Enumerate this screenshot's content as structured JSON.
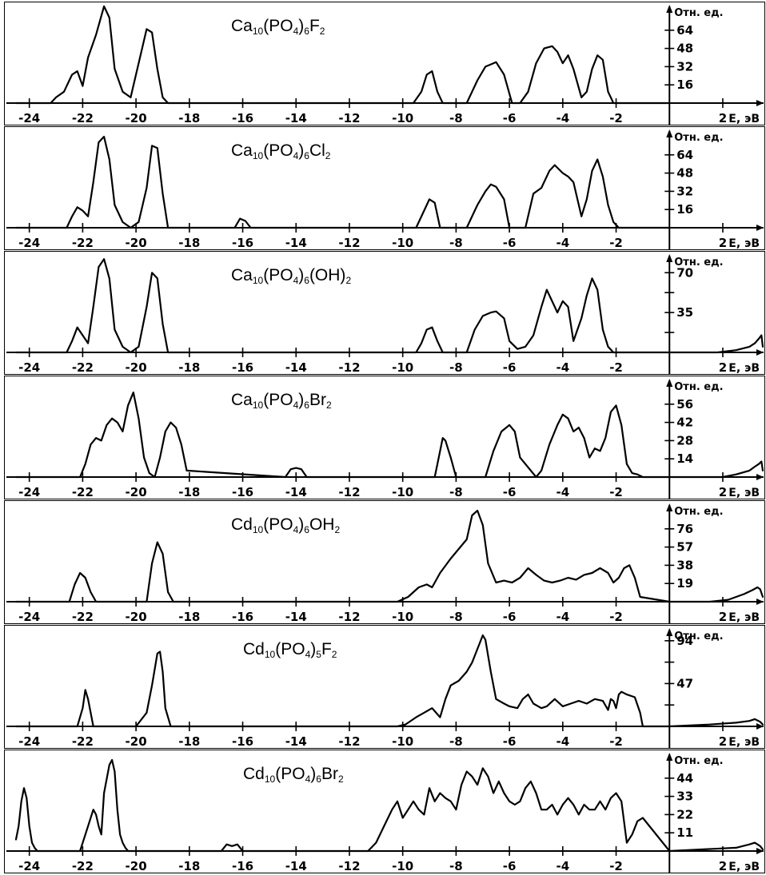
{
  "x_axis": {
    "xlim": [
      -24.5,
      3.5
    ],
    "tick_values": [
      -24,
      -22,
      -20,
      -18,
      -16,
      -14,
      -12,
      -10,
      -8,
      -6,
      -4,
      -2,
      2
    ],
    "tick_labels": [
      "-24",
      "-22",
      "-20",
      "-18",
      "-16",
      "-14",
      "-12",
      "-10",
      "-8",
      "-6",
      "-4",
      "-2",
      "2"
    ],
    "unit_label": "E, эВ"
  },
  "y_unit_label": "Отн. ед.",
  "line_color": "#000000",
  "chart_data": [
    {
      "type": "line",
      "formula": [
        [
          "Ca",
          "10"
        ],
        [
          "(PO",
          "4"
        ],
        [
          ")",
          "6"
        ],
        [
          "F",
          "2"
        ]
      ],
      "ylim": [
        0,
        80
      ],
      "y_ticks": [
        16,
        32,
        48,
        64
      ],
      "y_tick_labels": [
        "16",
        "32",
        "48",
        "64"
      ],
      "x": [
        -24.5,
        -23.2,
        -23.0,
        -22.7,
        -22.4,
        -22.2,
        -22.0,
        -21.8,
        -21.5,
        -21.2,
        -21.0,
        -20.8,
        -20.5,
        -20.2,
        -19.9,
        -19.6,
        -19.4,
        -19.2,
        -19.0,
        -18.8,
        -18.5,
        -9.6,
        -9.3,
        -9.1,
        -8.9,
        -8.7,
        -8.5,
        -7.6,
        -7.2,
        -6.9,
        -6.7,
        -6.5,
        -6.2,
        -5.9,
        -5.6,
        -5.3,
        -5.0,
        -4.7,
        -4.4,
        -4.2,
        -4.0,
        -3.8,
        -3.6,
        -3.3,
        -3.1,
        -2.9,
        -2.7,
        -2.5,
        -2.3,
        -2.1,
        -1.9,
        0
      ],
      "y": [
        0,
        0,
        5,
        10,
        25,
        28,
        15,
        40,
        60,
        85,
        75,
        30,
        10,
        5,
        35,
        65,
        62,
        30,
        5,
        0,
        0,
        0,
        10,
        25,
        28,
        10,
        0,
        0,
        20,
        32,
        34,
        36,
        25,
        0,
        0,
        10,
        35,
        48,
        50,
        45,
        35,
        42,
        30,
        5,
        10,
        30,
        42,
        38,
        10,
        0,
        0,
        0
      ]
    },
    {
      "type": "line",
      "formula": [
        [
          "Ca",
          "10"
        ],
        [
          "(PO",
          "4"
        ],
        [
          ")",
          "6"
        ],
        [
          "Cl",
          "2"
        ]
      ],
      "ylim": [
        0,
        80
      ],
      "y_ticks": [
        16,
        32,
        48,
        64
      ],
      "y_tick_labels": [
        "16",
        "32",
        "48",
        "64"
      ],
      "x": [
        -24.5,
        -22.6,
        -22.4,
        -22.2,
        -22.0,
        -21.8,
        -21.6,
        -21.4,
        -21.2,
        -21.0,
        -20.8,
        -20.5,
        -20.2,
        -19.9,
        -19.6,
        -19.4,
        -19.2,
        -19.0,
        -18.8,
        -16.3,
        -16.1,
        -15.9,
        -15.7,
        -9.5,
        -9.2,
        -9.0,
        -8.8,
        -8.6,
        -7.6,
        -7.2,
        -6.9,
        -6.7,
        -6.5,
        -6.2,
        -6.0,
        -5.4,
        -5.1,
        -4.8,
        -4.5,
        -4.3,
        -4.0,
        -3.8,
        -3.6,
        -3.3,
        -3.1,
        -2.9,
        -2.7,
        -2.5,
        -2.3,
        -2.1,
        -1.9,
        0
      ],
      "y": [
        0,
        0,
        10,
        18,
        15,
        10,
        40,
        75,
        80,
        60,
        20,
        5,
        0,
        5,
        35,
        72,
        70,
        30,
        0,
        0,
        8,
        6,
        0,
        0,
        15,
        25,
        22,
        0,
        0,
        20,
        32,
        38,
        36,
        25,
        0,
        0,
        30,
        35,
        50,
        55,
        48,
        45,
        40,
        10,
        25,
        50,
        60,
        45,
        20,
        5,
        0,
        0
      ]
    },
    {
      "type": "line",
      "formula": [
        [
          "Ca",
          "10"
        ],
        [
          "(PO",
          "4"
        ],
        [
          ")",
          "6"
        ],
        [
          "(OH)",
          "2"
        ]
      ],
      "ylim": [
        0,
        80
      ],
      "y_ticks": [
        17.5,
        35,
        52.5,
        70
      ],
      "y_tick_labels": [
        "",
        "35",
        "",
        "70"
      ],
      "x": [
        -24.5,
        -22.6,
        -22.4,
        -22.2,
        -22.0,
        -21.8,
        -21.6,
        -21.4,
        -21.2,
        -21.0,
        -20.8,
        -20.5,
        -20.2,
        -19.9,
        -19.6,
        -19.4,
        -19.2,
        -19.0,
        -18.8,
        -9.5,
        -9.3,
        -9.1,
        -8.9,
        -8.7,
        -8.5,
        -7.6,
        -7.3,
        -7.0,
        -6.7,
        -6.5,
        -6.2,
        -6.0,
        -5.7,
        -5.4,
        -5.1,
        -4.8,
        -4.6,
        -4.4,
        -4.2,
        -4.0,
        -3.8,
        -3.6,
        -3.3,
        -3.1,
        -2.9,
        -2.7,
        -2.5,
        -2.3,
        -2.1,
        -1.9,
        1.8,
        2.5,
        3.0,
        3.2,
        3.35,
        3.45,
        3.5
      ],
      "y": [
        0,
        0,
        10,
        22,
        15,
        8,
        40,
        75,
        82,
        65,
        20,
        5,
        0,
        5,
        40,
        70,
        65,
        25,
        0,
        0,
        8,
        20,
        22,
        10,
        0,
        0,
        20,
        32,
        35,
        36,
        30,
        10,
        3,
        5,
        15,
        40,
        55,
        45,
        35,
        45,
        40,
        10,
        30,
        50,
        65,
        55,
        20,
        5,
        0,
        0,
        0,
        2,
        5,
        8,
        12,
        15,
        5
      ]
    },
    {
      "type": "line",
      "formula": [
        [
          "Ca",
          "10"
        ],
        [
          "(PO",
          "4"
        ],
        [
          ")",
          "6"
        ],
        [
          "Br",
          "2"
        ]
      ],
      "ylim": [
        0,
        70
      ],
      "y_ticks": [
        14,
        28,
        42,
        56
      ],
      "y_tick_labels": [
        "14",
        "28",
        "42",
        "56"
      ],
      "x": [
        -24.5,
        -22.1,
        -21.9,
        -21.7,
        -21.5,
        -21.3,
        -21.1,
        -20.9,
        -20.7,
        -20.5,
        -20.3,
        -20.1,
        -19.9,
        -19.7,
        -19.5,
        -19.3,
        -19.1,
        -18.9,
        -18.7,
        -18.5,
        -18.3,
        -18.1,
        -14.4,
        -14.2,
        -14.0,
        -13.8,
        -13.6,
        -8.8,
        -8.6,
        -8.5,
        -8.4,
        -8.2,
        -8.0,
        -6.9,
        -6.6,
        -6.3,
        -6.0,
        -5.8,
        -5.6,
        -5.0,
        -4.8,
        -4.5,
        -4.2,
        -4.0,
        -3.8,
        -3.6,
        -3.4,
        -3.2,
        -3.0,
        -2.8,
        -2.6,
        -2.4,
        -2.2,
        -2.0,
        -1.8,
        -1.6,
        -1.4,
        -1.2,
        -1.0,
        0,
        2.0,
        2.5,
        3.0,
        3.2,
        3.35,
        3.45,
        3.5
      ],
      "y": [
        0,
        0,
        10,
        25,
        30,
        28,
        40,
        45,
        42,
        35,
        55,
        65,
        45,
        15,
        3,
        0,
        15,
        35,
        42,
        38,
        25,
        5,
        0,
        6,
        7,
        6,
        0,
        0,
        20,
        30,
        28,
        15,
        0,
        0,
        20,
        35,
        40,
        35,
        15,
        0,
        5,
        25,
        40,
        48,
        45,
        35,
        38,
        30,
        15,
        22,
        20,
        30,
        50,
        55,
        40,
        10,
        3,
        2,
        0,
        0,
        0,
        2,
        5,
        8,
        10,
        12,
        5
      ]
    },
    {
      "type": "line",
      "formula": [
        [
          "Cd",
          "10"
        ],
        [
          "(PO",
          "4"
        ],
        [
          ")",
          "6"
        ],
        [
          "OH",
          "2"
        ]
      ],
      "ylim": [
        0,
        95
      ],
      "y_ticks": [
        19,
        38,
        57,
        76
      ],
      "y_tick_labels": [
        "19",
        "38",
        "57",
        "76"
      ],
      "x": [
        -24.5,
        -22.5,
        -22.3,
        -22.1,
        -21.9,
        -21.7,
        -21.5,
        -19.6,
        -19.4,
        -19.2,
        -19.0,
        -18.8,
        -18.6,
        -10.2,
        -9.8,
        -9.4,
        -9.1,
        -8.9,
        -8.6,
        -8.2,
        -7.9,
        -7.6,
        -7.4,
        -7.2,
        -7.0,
        -6.8,
        -6.5,
        -6.2,
        -5.9,
        -5.6,
        -5.3,
        -5.0,
        -4.7,
        -4.4,
        -4.1,
        -3.8,
        -3.5,
        -3.2,
        -2.9,
        -2.6,
        -2.3,
        -2.1,
        -1.9,
        -1.7,
        -1.5,
        -1.3,
        -1.1,
        0,
        1.5,
        2.2,
        2.8,
        3.1,
        3.3,
        3.4,
        3.5
      ],
      "y": [
        0,
        0,
        18,
        30,
        25,
        10,
        0,
        0,
        40,
        62,
        50,
        10,
        0,
        0,
        5,
        15,
        18,
        15,
        30,
        45,
        55,
        65,
        90,
        95,
        80,
        40,
        20,
        22,
        20,
        25,
        35,
        28,
        22,
        20,
        22,
        25,
        23,
        28,
        30,
        35,
        30,
        20,
        25,
        35,
        38,
        25,
        5,
        0,
        0,
        2,
        8,
        12,
        15,
        13,
        5
      ]
    },
    {
      "type": "line",
      "formula": [
        [
          "Cd",
          "10"
        ],
        [
          "(PO",
          "4"
        ],
        [
          ")",
          "5"
        ],
        [
          "F",
          "2"
        ]
      ],
      "ylim": [
        0,
        100
      ],
      "y_ticks": [
        23.5,
        47,
        70.5,
        94
      ],
      "y_tick_labels": [
        "",
        "47",
        "",
        "94"
      ],
      "x": [
        -24.5,
        -22.2,
        -22.0,
        -21.9,
        -21.8,
        -21.6,
        -20.0,
        -19.6,
        -19.4,
        -19.2,
        -19.1,
        -19.0,
        -18.9,
        -18.7,
        -10.2,
        -9.9,
        -9.5,
        -9.2,
        -8.9,
        -8.6,
        -8.4,
        -8.2,
        -7.9,
        -7.6,
        -7.4,
        -7.2,
        -7.0,
        -6.9,
        -6.7,
        -6.5,
        -6.2,
        -6.0,
        -5.7,
        -5.5,
        -5.3,
        -5.1,
        -4.8,
        -4.6,
        -4.3,
        -4.0,
        -3.7,
        -3.4,
        -3.1,
        -2.8,
        -2.5,
        -2.3,
        -2.2,
        -2.1,
        -2.0,
        -1.9,
        -1.8,
        -1.6,
        -1.3,
        -1.1,
        -1.0,
        0,
        1.5,
        2.5,
        3.0,
        3.2,
        3.4,
        3.5
      ],
      "y": [
        0,
        0,
        20,
        40,
        30,
        0,
        0,
        15,
        45,
        80,
        82,
        60,
        20,
        0,
        0,
        2,
        10,
        15,
        20,
        10,
        30,
        45,
        50,
        60,
        70,
        85,
        100,
        95,
        60,
        30,
        25,
        22,
        20,
        30,
        35,
        25,
        20,
        22,
        30,
        22,
        25,
        28,
        25,
        30,
        28,
        18,
        30,
        28,
        20,
        35,
        38,
        35,
        32,
        15,
        0,
        0,
        2,
        4,
        6,
        8,
        5,
        2
      ]
    },
    {
      "type": "line",
      "formula": [
        [
          "Cd",
          "10"
        ],
        [
          "(PO",
          "4"
        ],
        [
          ")",
          "6"
        ],
        [
          "Br",
          "2"
        ]
      ],
      "ylim": [
        0,
        55
      ],
      "y_ticks": [
        11,
        22,
        33,
        44
      ],
      "y_tick_labels": [
        "11",
        "22",
        "33",
        "44"
      ],
      "x": [
        -24.5,
        -24.4,
        -24.3,
        -24.2,
        -24.1,
        -24.0,
        -23.9,
        -23.8,
        -23.7,
        -22.1,
        -21.8,
        -21.6,
        -21.5,
        -21.4,
        -21.3,
        -21.2,
        -21.0,
        -20.9,
        -20.8,
        -20.7,
        -20.6,
        -20.5,
        -20.4,
        -20.3,
        -16.8,
        -16.6,
        -16.4,
        -16.2,
        -16.0,
        -11.3,
        -11.0,
        -10.7,
        -10.4,
        -10.2,
        -10.0,
        -9.8,
        -9.6,
        -9.4,
        -9.2,
        -9.0,
        -8.8,
        -8.6,
        -8.4,
        -8.2,
        -8.0,
        -7.8,
        -7.6,
        -7.4,
        -7.2,
        -7.0,
        -6.8,
        -6.6,
        -6.4,
        -6.2,
        -6.0,
        -5.8,
        -5.6,
        -5.4,
        -5.2,
        -5.0,
        -4.8,
        -4.6,
        -4.4,
        -4.2,
        -4.0,
        -3.8,
        -3.6,
        -3.4,
        -3.2,
        -3.0,
        -2.8,
        -2.6,
        -2.4,
        -2.2,
        -2.0,
        -1.8,
        -1.6,
        -1.4,
        -1.2,
        -1.0,
        0,
        2.5,
        3.0,
        3.2,
        3.4,
        3.5
      ],
      "y": [
        7,
        15,
        30,
        38,
        32,
        15,
        5,
        2,
        0,
        0,
        15,
        25,
        22,
        15,
        10,
        35,
        52,
        55,
        48,
        25,
        10,
        5,
        2,
        0,
        0,
        4,
        3,
        4,
        0,
        0,
        5,
        15,
        25,
        30,
        20,
        25,
        30,
        25,
        22,
        38,
        30,
        35,
        32,
        30,
        25,
        40,
        48,
        45,
        40,
        50,
        45,
        35,
        42,
        35,
        30,
        28,
        30,
        38,
        42,
        35,
        25,
        25,
        28,
        22,
        28,
        32,
        28,
        22,
        28,
        25,
        25,
        30,
        25,
        32,
        35,
        30,
        5,
        10,
        18,
        20,
        0,
        2,
        4,
        5,
        3,
        1
      ]
    }
  ]
}
